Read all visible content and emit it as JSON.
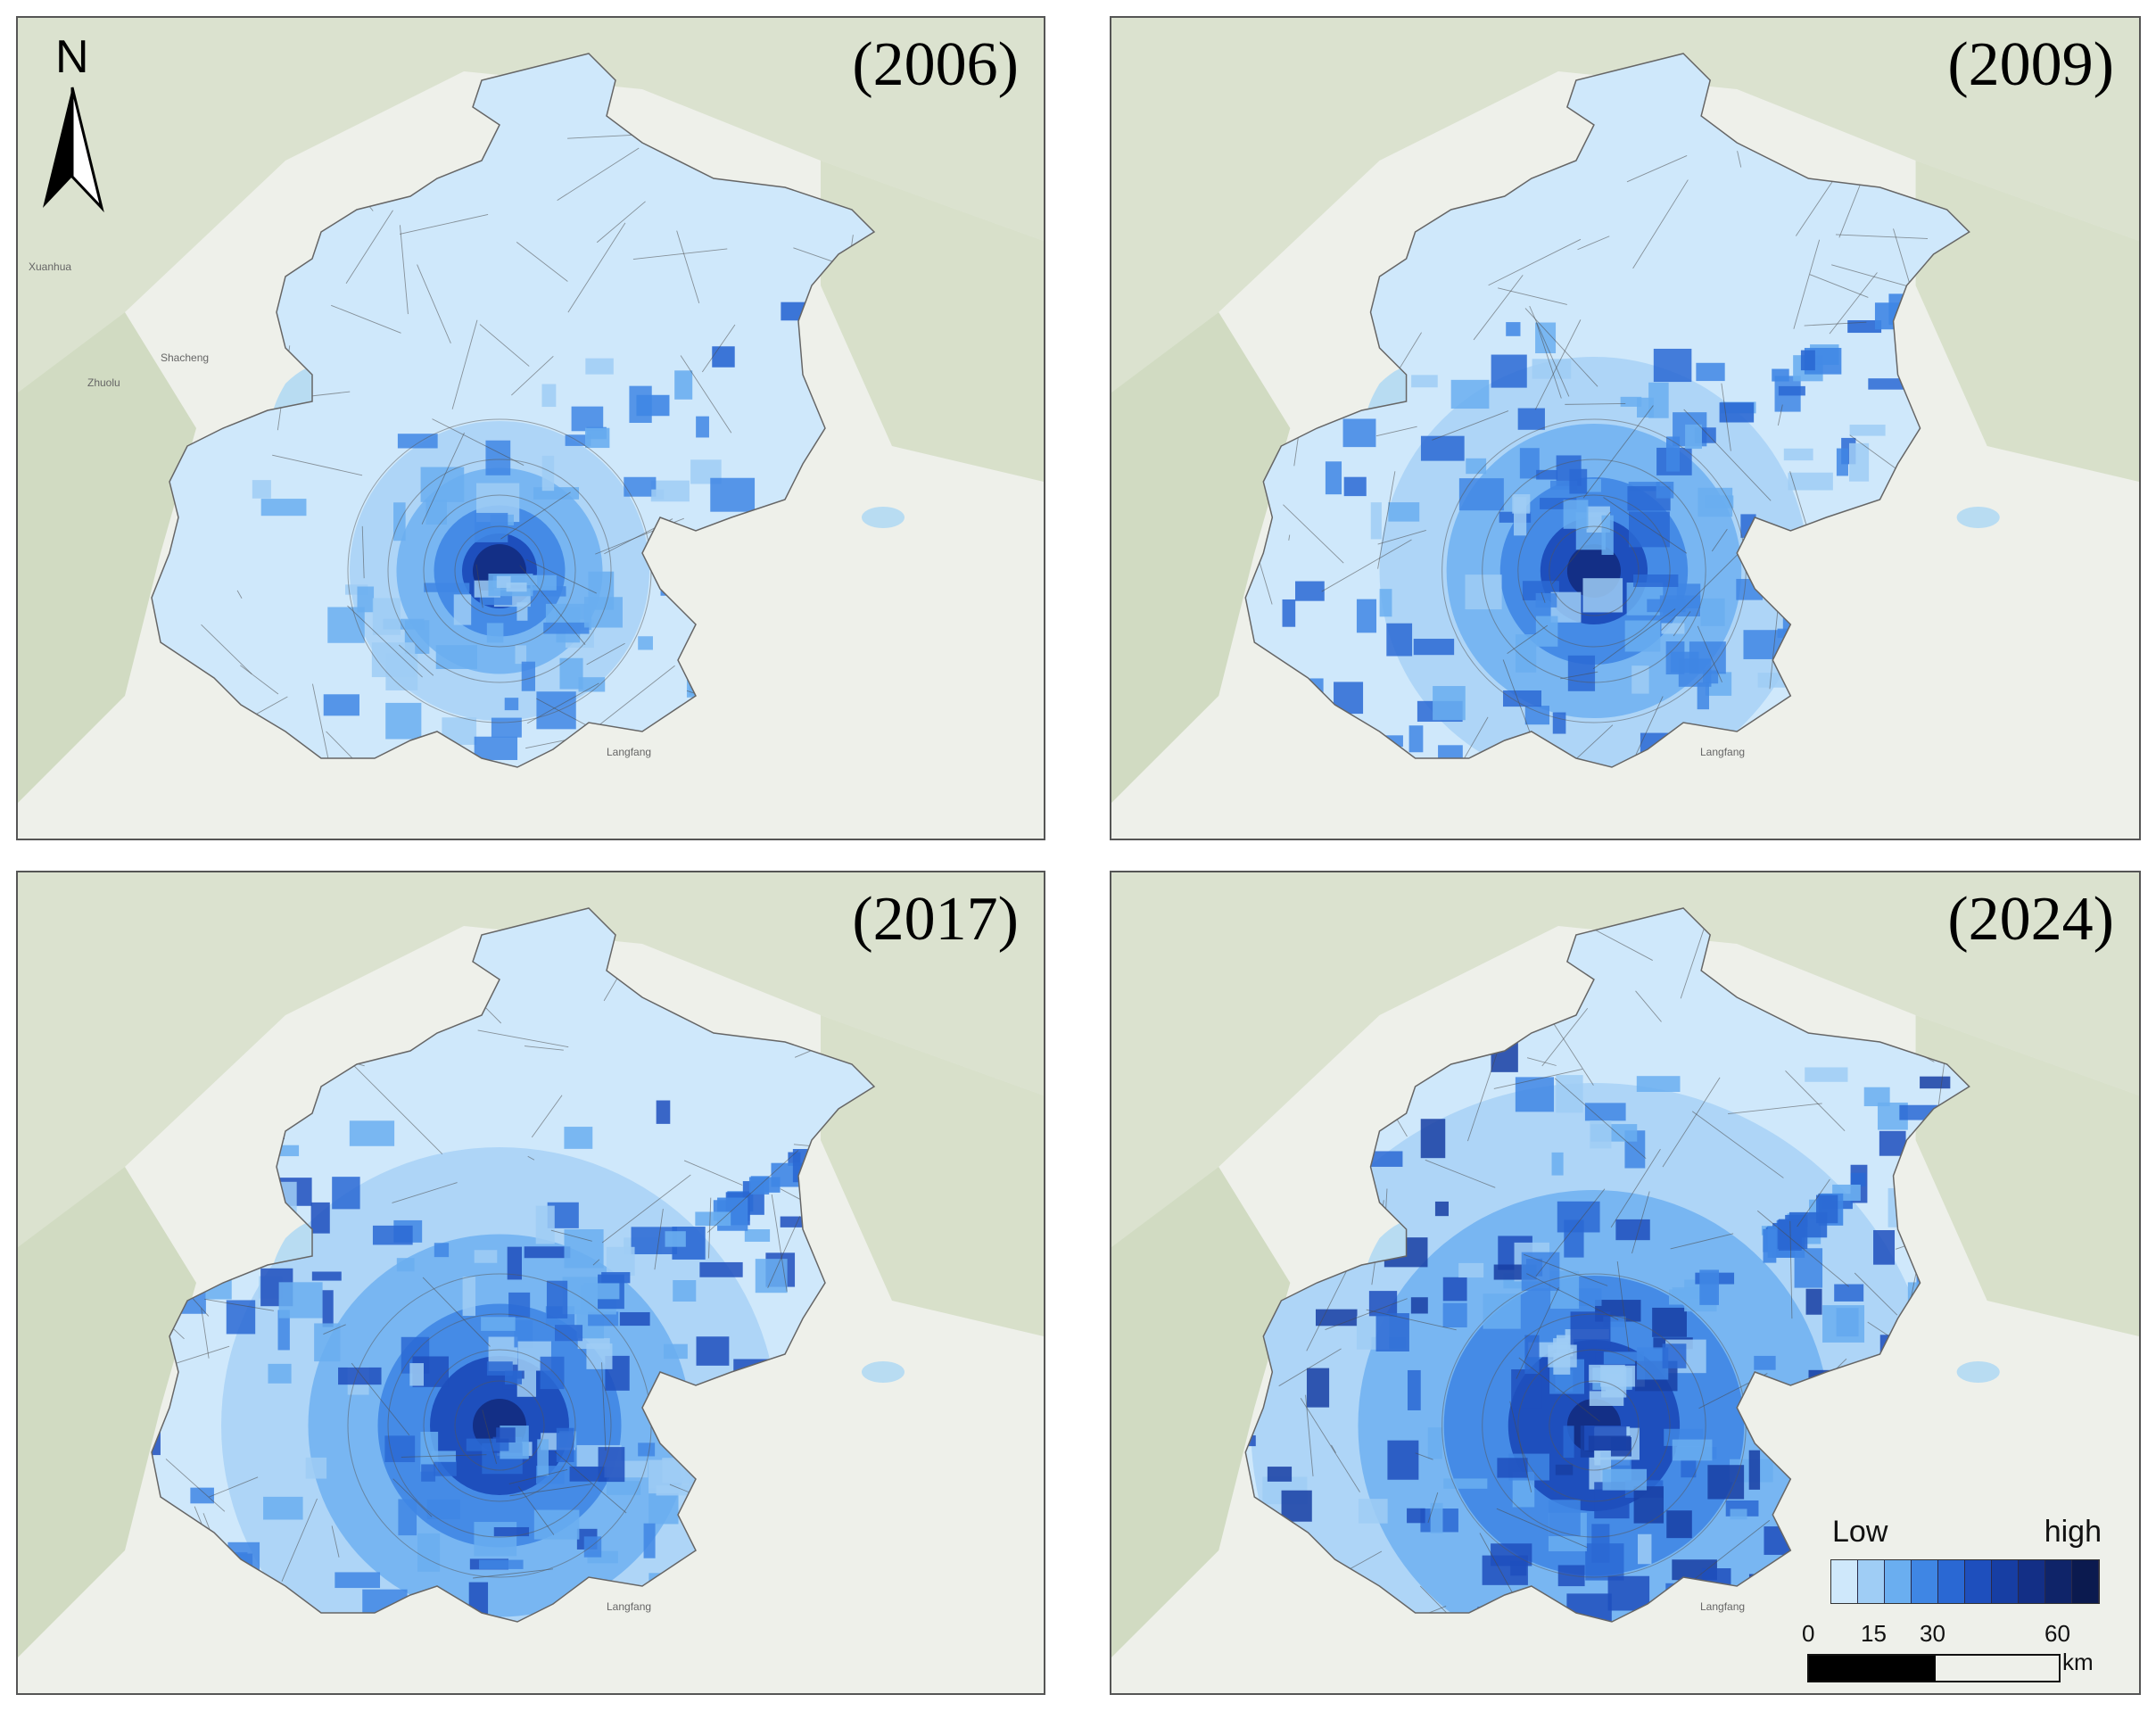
{
  "panels": [
    {
      "year_label": "(2006)",
      "level": 1
    },
    {
      "year_label": "(2009)",
      "level": 2
    },
    {
      "year_label": "(2017)",
      "level": 3
    },
    {
      "year_label": "(2024)",
      "level": 4
    }
  ],
  "basemap_labels": [
    "Xuanhua",
    "Shacheng",
    "Zhuolu",
    "Langfang"
  ],
  "north_arrow": {
    "label": "N",
    "icon": "north-arrow-icon"
  },
  "legend": {
    "low_label": "Low",
    "high_label": "high",
    "colors": [
      "#cfe8fb",
      "#9fcdf5",
      "#6aaef0",
      "#3f86e4",
      "#2a68d3",
      "#1e4fbd",
      "#173ea3",
      "#132f86",
      "#0f2469",
      "#0b1a4f"
    ]
  },
  "scale": {
    "ticks": [
      "0",
      "15",
      "30",
      "60"
    ],
    "unit": "km"
  },
  "colors": {
    "region_fill": "#cfe8fb",
    "boundary": "#4a4a4a",
    "water": "#b8dcf2"
  }
}
